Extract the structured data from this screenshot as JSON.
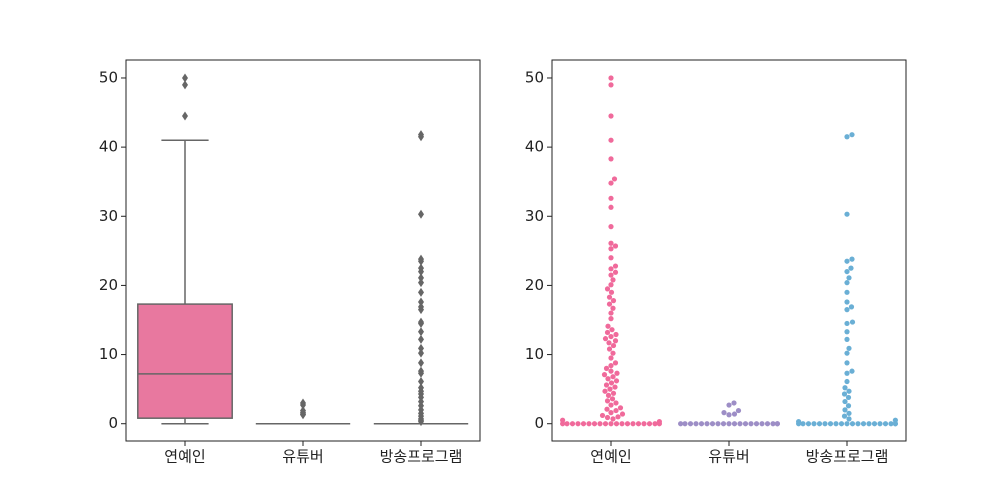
{
  "chart_data": [
    {
      "type": "box",
      "categories": [
        "연예인",
        "유튜버",
        "방송프로그램"
      ],
      "colors": [
        "#e8789f",
        "#9d8ec6",
        "#6aafd5"
      ],
      "boxes": [
        {
          "whislo": 0,
          "q1": 0.8,
          "med": 7.2,
          "q3": 17.3,
          "whishi": 41.0,
          "fliers": [
            44.5,
            49.0,
            50.0
          ]
        },
        {
          "whislo": 0,
          "q1": 0,
          "med": 0,
          "q3": 0,
          "whishi": 0,
          "fliers": [
            1.3,
            1.4,
            1.6,
            1.9,
            2.7,
            3.0
          ]
        },
        {
          "whislo": 0,
          "q1": 0,
          "med": 0,
          "q3": 0,
          "whishi": 0,
          "fliers": [
            0.3,
            0.5,
            0.7,
            1.1,
            1.5,
            2.0,
            2.6,
            3.2,
            3.8,
            4.3,
            4.7,
            5.2,
            6.1,
            7.3,
            7.6,
            8.8,
            10.2,
            10.9,
            12.2,
            13.3,
            14.5,
            14.7,
            16.5,
            16.9,
            17.6,
            19.0,
            20.4,
            21.1,
            22.0,
            22.5,
            23.5,
            23.8,
            30.3,
            41.5,
            41.8
          ]
        }
      ],
      "ylim": [
        -2.5,
        52.6
      ],
      "yticks": [
        0,
        10,
        20,
        30,
        40,
        50
      ]
    },
    {
      "type": "swarm",
      "categories": [
        "연예인",
        "유튜버",
        "방송프로그램"
      ],
      "colors": [
        "#f06a9b",
        "#9d8ec6",
        "#6aafd5"
      ],
      "groups": [
        [
          0,
          0,
          0,
          0,
          0,
          0,
          0,
          0,
          0,
          0,
          0,
          0,
          0,
          0,
          0,
          0,
          0,
          0,
          0,
          0.3,
          0.5,
          0.7,
          0.9,
          1.0,
          1.2,
          1.4,
          1.6,
          1.9,
          2.1,
          2.3,
          2.7,
          3.0,
          3.3,
          3.6,
          4.1,
          4.4,
          4.7,
          5.0,
          5.3,
          5.6,
          5.9,
          6.2,
          6.5,
          6.8,
          7.1,
          7.3,
          7.6,
          8.0,
          8.4,
          8.8,
          9.5,
          10.2,
          10.8,
          11.3,
          11.7,
          12.0,
          12.3,
          12.6,
          12.9,
          13.2,
          13.6,
          14.1,
          15.2,
          16.0,
          16.7,
          17.3,
          17.8,
          18.3,
          19.0,
          19.5,
          20.1,
          20.8,
          21.5,
          21.9,
          22.4,
          22.8,
          24.0,
          25.3,
          25.7,
          26.1,
          28.5,
          31.3,
          32.6,
          34.8,
          35.4,
          38.3,
          41.0,
          44.5,
          49.0,
          50.0
        ],
        [
          0,
          0,
          0,
          0,
          0,
          0,
          0,
          0,
          0,
          0,
          0,
          0,
          0,
          0,
          0,
          0,
          0,
          0,
          0,
          0,
          1.3,
          1.4,
          1.6,
          1.9,
          2.7,
          3.0
        ],
        [
          0,
          0,
          0,
          0,
          0,
          0,
          0,
          0,
          0,
          0,
          0,
          0,
          0,
          0,
          0,
          0,
          0,
          0,
          0,
          0,
          0.3,
          0.5,
          0.7,
          1.1,
          1.5,
          2.0,
          2.6,
          3.2,
          3.8,
          4.3,
          4.7,
          5.2,
          6.1,
          7.3,
          7.6,
          8.8,
          10.2,
          10.9,
          12.2,
          13.3,
          14.5,
          14.7,
          16.5,
          16.9,
          17.6,
          19.0,
          20.4,
          21.1,
          22.0,
          22.5,
          23.5,
          23.8,
          30.3,
          41.5,
          41.8
        ]
      ],
      "ylim": [
        -2.5,
        52.6
      ],
      "yticks": [
        0,
        10,
        20,
        30,
        40,
        50
      ]
    }
  ]
}
